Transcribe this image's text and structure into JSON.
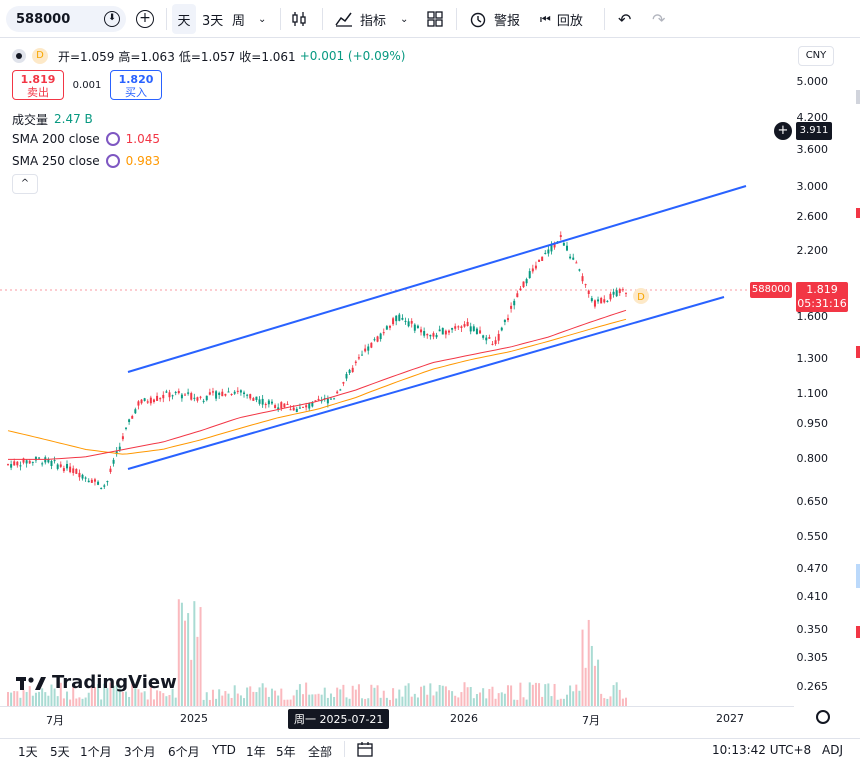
{
  "toolbar": {
    "symbol": "588000",
    "interval_day": "天",
    "interval_3day": "3天",
    "interval_week": "周",
    "indicators_label": "指标",
    "alert_label": "警报",
    "replay_label": "回放"
  },
  "legend": {
    "open_label": "开=1.059",
    "high_label": "高=1.063",
    "low_label": "低=1.057",
    "close_label": "收=1.061",
    "change_label": "+0.001 (+0.09%)",
    "dividend_badge": "D",
    "sell_price": "1.819",
    "sell_label": "卖出",
    "spread": "0.001",
    "buy_price": "1.820",
    "buy_label": "买入",
    "volume_label": "成交量",
    "volume_value": "2.47 B",
    "sma200_label": "SMA 200 close",
    "sma200_value": "1.045",
    "sma250_label": "SMA 250 close",
    "sma250_value": "0.983",
    "collapse_icon": "^"
  },
  "price_axis": {
    "currency": "CNY",
    "labels": [
      "5.000",
      "4.200",
      "3.600",
      "3.000",
      "2.600",
      "2.200",
      "1.800",
      "1.600",
      "1.300",
      "1.100",
      "0.950",
      "0.800",
      "0.650",
      "0.550",
      "0.470",
      "0.410",
      "0.350",
      "0.305",
      "0.265"
    ],
    "crosshair_price": "3.911",
    "last_price": "1.819",
    "countdown": "05:31:16",
    "symbol_tag": "588000"
  },
  "time_axis": {
    "labels": [
      "7月",
      "2025",
      "2026",
      "7月",
      "2027"
    ],
    "current_label": "周一 2025-07-21"
  },
  "bottom_bar": {
    "ranges": [
      "1天",
      "5天",
      "1个月",
      "3个月",
      "6个月",
      "YTD",
      "1年",
      "5年",
      "全部"
    ],
    "clock": "10:13:42 UTC+8",
    "adj": "ADJ"
  },
  "branding": {
    "logo_text": "TradingView"
  },
  "chart_data": {
    "type": "line",
    "series": [
      {
        "name": "588000",
        "values": [
          0.78,
          0.8,
          0.76,
          0.7,
          1.05,
          1.1,
          1.08,
          1.12,
          1.05,
          1.02,
          1.08,
          1.35,
          1.6,
          1.45,
          1.55,
          1.4,
          1.95,
          2.35,
          1.7,
          1.82
        ]
      },
      {
        "name": "SMA 200 close",
        "values": [
          0.8,
          0.8,
          0.81,
          0.84,
          0.87,
          0.92,
          0.98,
          1.02,
          1.06,
          1.12,
          1.2,
          1.28,
          1.33,
          1.38,
          1.45,
          1.55,
          1.65
        ]
      },
      {
        "name": "SMA 250 close",
        "values": [
          0.92,
          0.88,
          0.84,
          0.82,
          0.84,
          0.88,
          0.93,
          0.98,
          1.02,
          1.08,
          1.16,
          1.24,
          1.3,
          1.35,
          1.42,
          1.5,
          1.58
        ]
      }
    ],
    "trendlines": [
      {
        "from": [
          "2024-09",
          1.2
        ],
        "to": [
          "2027-01",
          3.0
        ]
      },
      {
        "from": [
          "2024-09",
          0.75
        ],
        "to": [
          "2026-12",
          1.78
        ]
      }
    ],
    "yscale": "log",
    "ylim": [
      0.25,
      5.0
    ]
  },
  "colors": {
    "accent_blue": "#2962ff",
    "up_green": "#089981",
    "down_red": "#f23645",
    "sma200": "#f23645",
    "sma250": "#ff9800"
  }
}
